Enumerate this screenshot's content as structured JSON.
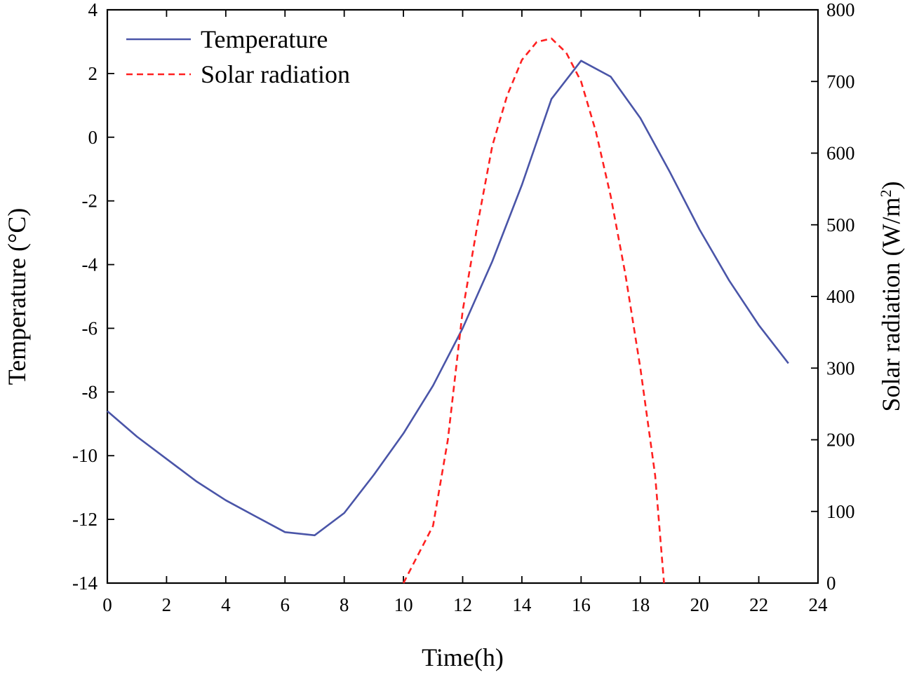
{
  "chart_data": {
    "type": "line",
    "title": "",
    "xlabel": "Time(h)",
    "ylabel_left": "Temperature (°C)",
    "ylabel_right_main": "Solar radiation (W/m",
    "ylabel_right_sup": "2",
    "ylabel_right_close": ")",
    "xlim": [
      0,
      24
    ],
    "ylim_left": [
      -14,
      4
    ],
    "ylim_right": [
      0,
      800
    ],
    "x_ticks": [
      0,
      2,
      4,
      6,
      8,
      10,
      12,
      14,
      16,
      18,
      20,
      22,
      24
    ],
    "y_left_ticks": [
      -14,
      -12,
      -10,
      -8,
      -6,
      -4,
      -2,
      0,
      2,
      4
    ],
    "y_right_ticks": [
      0,
      100,
      200,
      300,
      400,
      500,
      600,
      700,
      800
    ],
    "grid": false,
    "legend_position": "top-left",
    "series": [
      {
        "name": "Temperature",
        "axis": "left",
        "color": "#4a55a8",
        "style": "solid",
        "x": [
          0,
          1,
          2,
          3,
          4,
          5,
          6,
          7,
          8,
          9,
          10,
          11,
          12,
          13,
          14,
          15,
          16,
          17,
          18,
          19,
          20,
          21,
          22,
          23
        ],
        "values": [
          -8.6,
          -9.4,
          -10.1,
          -10.8,
          -11.4,
          -11.9,
          -12.4,
          -12.5,
          -11.8,
          -10.6,
          -9.3,
          -7.8,
          -6.0,
          -3.9,
          -1.5,
          1.2,
          2.4,
          1.9,
          0.6,
          -1.1,
          -2.9,
          -4.5,
          -5.9,
          -7.1
        ]
      },
      {
        "name": "Solar radiation",
        "axis": "right",
        "color": "#ff2020",
        "style": "dashed",
        "x": [
          10,
          10.5,
          11,
          11.5,
          12,
          12.5,
          13,
          13.5,
          14,
          14.5,
          15,
          15.5,
          16,
          16.5,
          17,
          17.5,
          18,
          18.5,
          18.8
        ],
        "values": [
          0,
          40,
          80,
          200,
          380,
          500,
          610,
          680,
          730,
          755,
          760,
          740,
          700,
          630,
          540,
          430,
          300,
          150,
          0
        ]
      }
    ]
  }
}
